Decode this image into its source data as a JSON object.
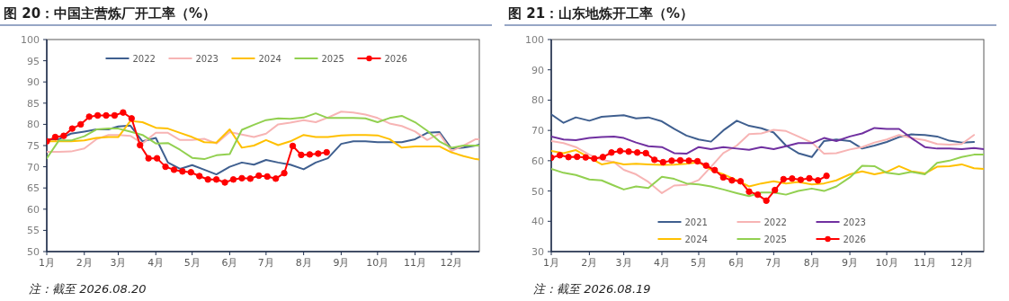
{
  "chart_data": [
    {
      "type": "line",
      "title": "图 20：中国主营炼厂开工率（%）",
      "legend": "top",
      "annotations": [
        "注：截至 2026.08.20"
      ],
      "xlim": [
        "--01-01",
        "--12-24"
      ],
      "ylim": [
        50,
        100
      ],
      "yticks": [
        50,
        55,
        60,
        65,
        70,
        75,
        80,
        85,
        90,
        95,
        100
      ],
      "xticks": [
        {
          "value": "--01-01",
          "label": "1月"
        },
        {
          "value": "--02-01",
          "label": "2月"
        },
        {
          "value": "--03-01",
          "label": "3月"
        },
        {
          "value": "--04-01",
          "label": "4月"
        },
        {
          "value": "--05-01",
          "label": "5月"
        },
        {
          "value": "--06-01",
          "label": "6月"
        },
        {
          "value": "--07-01",
          "label": "7月"
        },
        {
          "value": "--08-01",
          "label": "8月"
        },
        {
          "value": "--09-01",
          "label": "9月"
        },
        {
          "value": "--10-01",
          "label": "10月"
        },
        {
          "value": "--11-01",
          "label": "11月"
        },
        {
          "value": "--12-01",
          "label": "12月"
        }
      ],
      "x": [
        "--01-01",
        "--01-11",
        "--01-21",
        "--02-01",
        "--02-11",
        "--02-21",
        "--03-01",
        "--03-11",
        "--03-21",
        "--04-01",
        "--04-11",
        "--04-21",
        "--05-01",
        "--05-11",
        "--05-21",
        "--06-01",
        "--06-11",
        "--06-21",
        "--07-01",
        "--07-11",
        "--07-21",
        "--08-01",
        "--08-11",
        "--08-21",
        "--09-01",
        "--09-11",
        "--09-21",
        "--10-01",
        "--10-11",
        "--10-21",
        "--11-01",
        "--11-11",
        "--11-21",
        "--12-01",
        "--12-11",
        "--12-21",
        "--12-24"
      ],
      "series": [
        {
          "name": "2022",
          "color": "#3f5f8f",
          "values": [
            76.5,
            76.5,
            77.8,
            78.3,
            78.8,
            78.8,
            79.5,
            79.7,
            76,
            76.8,
            71,
            69.5,
            70.4,
            69.3,
            68.2,
            70,
            71,
            70.5,
            71.6,
            71,
            70.5,
            69.4,
            71,
            72,
            75.4,
            76,
            76,
            75.8,
            75.8,
            75.8,
            76.5,
            78,
            78.2,
            74.3,
            74.5,
            75,
            75.2
          ]
        },
        {
          "name": "2023",
          "color": "#f7b4b4",
          "values": [
            73.5,
            73.5,
            73.6,
            74.3,
            76.5,
            77.5,
            77.5,
            77.3,
            75.5,
            78,
            78,
            76.3,
            76.3,
            76.6,
            75.5,
            78.2,
            77.6,
            77,
            77.8,
            80,
            80.4,
            81,
            80.5,
            81.6,
            83,
            82.8,
            82.3,
            81.5,
            80.2,
            79.6,
            78.3,
            76.3,
            77.8,
            73.7,
            75,
            76.5,
            76.5
          ]
        },
        {
          "name": "2024",
          "color": "#ffc000",
          "values": [
            76,
            76,
            76,
            76.2,
            76.8,
            77,
            77,
            80.8,
            80.5,
            79.2,
            79,
            78,
            77,
            75.8,
            75.7,
            78.8,
            74.5,
            75,
            76.3,
            75.1,
            76,
            77.5,
            77,
            77,
            77.4,
            77.5,
            77.5,
            77.4,
            76.5,
            74.5,
            74.8,
            74.8,
            74.8,
            73.4,
            72.5,
            71.8,
            71.7
          ]
        },
        {
          "name": "2025",
          "color": "#92d050",
          "values": [
            72,
            76.2,
            76.2,
            77.2,
            78.8,
            79,
            79,
            78.3,
            77.5,
            75.5,
            75.6,
            74,
            72.1,
            71.8,
            72.7,
            73,
            78.7,
            79.9,
            81,
            81.4,
            81.3,
            81.6,
            82.6,
            81.5,
            81.5,
            81.5,
            81.4,
            80.5,
            81.5,
            82,
            80.5,
            78.5,
            76,
            74.5,
            75,
            75,
            75
          ]
        },
        {
          "name": "2026",
          "color": "#ff0000",
          "marker": "circle",
          "x": [
            "--01-01",
            "--01-08",
            "--01-15",
            "--01-22",
            "--01-29",
            "--02-05",
            "--02-12",
            "--02-19",
            "--02-26",
            "--03-05",
            "--03-12",
            "--03-19",
            "--03-26",
            "--04-02",
            "--04-09",
            "--04-16",
            "--04-23",
            "--04-30",
            "--05-07",
            "--05-14",
            "--05-21",
            "--05-28",
            "--06-04",
            "--06-11",
            "--06-18",
            "--06-25",
            "--07-02",
            "--07-09",
            "--07-16",
            "--07-23",
            "--07-30",
            "--08-06",
            "--08-13",
            "--08-20"
          ],
          "values": [
            76,
            77,
            77.3,
            79,
            80,
            81.8,
            82.1,
            82.1,
            82.1,
            82.8,
            81.4,
            75.1,
            72,
            72,
            70,
            69.3,
            68.9,
            68.7,
            67.8,
            67,
            67,
            66.3,
            67,
            67.3,
            67.2,
            67.9,
            67.7,
            67.2,
            68.5,
            74.9,
            72.8,
            72.9,
            73.1,
            73.4
          ]
        }
      ]
    },
    {
      "type": "line",
      "title": "图 21：山东地炼开工率（%）",
      "legend": "bottom",
      "annotations": [
        "注：截至 2026.08.19"
      ],
      "xlim": [
        "--01-01",
        "--12-19"
      ],
      "ylim": [
        30,
        100
      ],
      "yticks": [
        30,
        40,
        50,
        60,
        70,
        80,
        90,
        100
      ],
      "xticks": [
        {
          "value": "--01-01",
          "label": "1月"
        },
        {
          "value": "--02-01",
          "label": "2月"
        },
        {
          "value": "--03-01",
          "label": "3月"
        },
        {
          "value": "--04-01",
          "label": "4月"
        },
        {
          "value": "--05-01",
          "label": "5月"
        },
        {
          "value": "--06-01",
          "label": "6月"
        },
        {
          "value": "--07-01",
          "label": "7月"
        },
        {
          "value": "--08-01",
          "label": "8月"
        },
        {
          "value": "--09-01",
          "label": "9月"
        },
        {
          "value": "--10-01",
          "label": "10月"
        },
        {
          "value": "--11-01",
          "label": "11月"
        },
        {
          "value": "--12-01",
          "label": "12月"
        }
      ],
      "x": [
        "--01-01",
        "--01-11",
        "--01-21",
        "--02-01",
        "--02-11",
        "--02-21",
        "--03-01",
        "--03-11",
        "--03-21",
        "--04-01",
        "--04-11",
        "--04-21",
        "--05-01",
        "--05-11",
        "--05-21",
        "--06-01",
        "--06-11",
        "--06-21",
        "--07-01",
        "--07-11",
        "--07-21",
        "--08-01",
        "--08-11",
        "--08-21",
        "--09-01",
        "--09-11",
        "--09-21",
        "--10-01",
        "--10-11",
        "--10-21",
        "--11-01",
        "--11-11",
        "--11-21",
        "--12-01",
        "--12-11",
        "--12-19"
      ],
      "series": [
        {
          "name": "2021",
          "color": "#3f5f8f",
          "values": [
            75.3,
            72.5,
            74.3,
            73.2,
            74.5,
            74.8,
            75,
            74,
            74.3,
            73,
            70.5,
            68.3,
            67,
            66.3,
            70,
            73.2,
            71.5,
            70.7,
            69.3,
            65,
            62.5,
            61.2,
            66.5,
            67,
            66.5,
            64,
            65,
            66.2,
            67.8,
            68.7,
            68.5,
            68,
            66.6,
            66,
            66.2,
            null
          ]
        },
        {
          "name": "2022",
          "color": "#f7b4b4",
          "values": [
            66.5,
            65.8,
            64.5,
            62,
            60.3,
            59.5,
            57,
            55.5,
            53,
            49.3,
            51.8,
            52,
            53.6,
            58,
            62.5,
            65,
            68.8,
            69,
            70.2,
            69.8,
            68,
            66,
            62.3,
            62.5,
            63.7,
            64.5,
            66,
            67,
            68.5,
            67.5,
            66.8,
            65.5,
            65.3,
            65.5,
            68.5,
            null
          ]
        },
        {
          "name": "2023",
          "color": "#7030a0",
          "values": [
            68,
            67,
            66.8,
            67.5,
            67.8,
            68,
            67.5,
            66,
            64.8,
            64.5,
            62.5,
            62.3,
            64.5,
            63.8,
            64.5,
            64,
            63.6,
            64.5,
            63.8,
            64.8,
            65.8,
            65.8,
            67.5,
            66.5,
            68,
            69,
            70.8,
            70.5,
            70.5,
            67.5,
            64.5,
            64,
            64,
            63.8,
            64.2,
            63.8
          ]
        },
        {
          "name": "2024",
          "color": "#ffc000",
          "values": [
            63.2,
            62.5,
            63.5,
            61,
            58.8,
            59.5,
            58.8,
            59,
            58.8,
            58.6,
            58.7,
            59,
            59.5,
            57,
            55.5,
            53.5,
            51.5,
            52.5,
            53.2,
            52.5,
            53,
            52.2,
            52.5,
            53.5,
            55.5,
            56.5,
            55.5,
            56.3,
            58.2,
            56.5,
            55.8,
            58,
            58.2,
            58.8,
            57.5,
            57.3
          ]
        },
        {
          "name": "2025",
          "color": "#92d050",
          "values": [
            57.3,
            56,
            55.3,
            53.8,
            53.5,
            51.8,
            50.5,
            51.5,
            51,
            54.7,
            54,
            52.5,
            52.2,
            51.5,
            50.5,
            49.3,
            48.3,
            49.5,
            49.5,
            48.8,
            50,
            50.8,
            50,
            51.5,
            54.5,
            58.3,
            58.2,
            56,
            55.5,
            56.3,
            55.5,
            59.3,
            60,
            61.2,
            62,
            62
          ]
        },
        {
          "name": "2026",
          "color": "#ff0000",
          "marker": "circle",
          "x": [
            "--01-01",
            "--01-08",
            "--01-15",
            "--01-22",
            "--01-29",
            "--02-05",
            "--02-12",
            "--02-19",
            "--02-26",
            "--03-05",
            "--03-12",
            "--03-19",
            "--03-26",
            "--04-02",
            "--04-09",
            "--04-16",
            "--04-23",
            "--04-30",
            "--05-07",
            "--05-14",
            "--05-21",
            "--05-28",
            "--06-04",
            "--06-11",
            "--06-18",
            "--06-25",
            "--07-02",
            "--07-09",
            "--07-16",
            "--07-23",
            "--07-30",
            "--08-06",
            "--08-13"
          ],
          "values": [
            61,
            61.8,
            61.2,
            61.3,
            61.1,
            60.7,
            61.2,
            62.7,
            63.2,
            63,
            62.7,
            62.5,
            60.3,
            59.5,
            60,
            60.1,
            60,
            59.8,
            58.4,
            56.9,
            54.5,
            53.5,
            53.2,
            49.8,
            48.8,
            46.8,
            50.3,
            53.9,
            54.1,
            53.7,
            54.2,
            53.5,
            55
          ]
        }
      ]
    }
  ]
}
